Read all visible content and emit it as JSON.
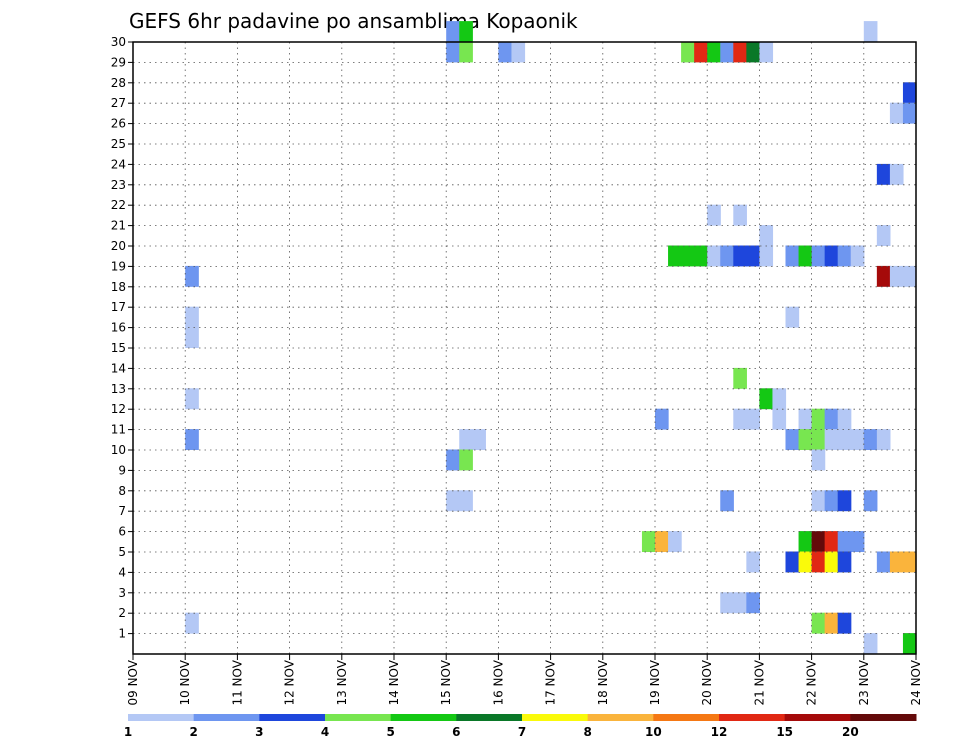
{
  "chart_data": {
    "type": "heatmap",
    "title": "GEFS 6hr padavine po ansamblima Kopaonik",
    "xlabel": "",
    "ylabel": "",
    "x_tick_labels": [
      "09 NOV",
      "10 NOV",
      "11 NOV",
      "12 NOV",
      "13 NOV",
      "14 NOV",
      "15 NOV",
      "16 NOV",
      "17 NOV",
      "18 NOV",
      "19 NOV",
      "20 NOV",
      "21 NOV",
      "22 NOV",
      "23 NOV",
      "24 NOV"
    ],
    "xlim": [
      0,
      60
    ],
    "ylim": [
      0,
      30
    ],
    "y_ticks": [
      1,
      2,
      3,
      4,
      5,
      6,
      7,
      8,
      9,
      10,
      11,
      12,
      13,
      14,
      15,
      16,
      17,
      18,
      19,
      20,
      21,
      22,
      23,
      24,
      25,
      26,
      27,
      28,
      29,
      30
    ],
    "grid": true,
    "legend": {
      "placement": "bottom",
      "labels": [
        "1",
        "2",
        "3",
        "4",
        "5",
        "6",
        "7",
        "8",
        "10",
        "12",
        "15",
        "20"
      ],
      "colors": [
        "#b4c8f5",
        "#6e96f0",
        "#1e46dc",
        "#78e650",
        "#14c814",
        "#0a7828",
        "#fafa0a",
        "#fab43c",
        "#f57814",
        "#e12814",
        "#a50a0a",
        "#640a0a"
      ]
    },
    "cells_note": "each cell: x = 6-hour step index from 09 NOV 00UTC, member = ensemble member (row), c = color class index",
    "cells": [
      {
        "x": 4,
        "member": 18,
        "c": 1
      },
      {
        "x": 4,
        "member": 16,
        "c": 0
      },
      {
        "x": 4,
        "member": 15,
        "c": 0
      },
      {
        "x": 4,
        "member": 12,
        "c": 0
      },
      {
        "x": 4,
        "member": 10,
        "c": 1
      },
      {
        "x": 4,
        "member": 1,
        "c": 0
      },
      {
        "x": 24,
        "member": 30,
        "c": 1
      },
      {
        "x": 25,
        "member": 30,
        "c": 4
      },
      {
        "x": 24,
        "member": 29,
        "c": 1
      },
      {
        "x": 25,
        "member": 29,
        "c": 3
      },
      {
        "x": 28,
        "member": 29,
        "c": 1
      },
      {
        "x": 29,
        "member": 29,
        "c": 0
      },
      {
        "x": 42,
        "member": 29,
        "c": 3
      },
      {
        "x": 43,
        "member": 29,
        "c": 9
      },
      {
        "x": 44,
        "member": 29,
        "c": 4
      },
      {
        "x": 45,
        "member": 29,
        "c": 1
      },
      {
        "x": 46,
        "member": 29,
        "c": 9
      },
      {
        "x": 47,
        "member": 29,
        "c": 5
      },
      {
        "x": 48,
        "member": 29,
        "c": 0
      },
      {
        "x": 56,
        "member": 30,
        "c": 0
      },
      {
        "x": 59,
        "member": 27,
        "c": 2
      },
      {
        "x": 58,
        "member": 26,
        "c": 0
      },
      {
        "x": 59,
        "member": 26,
        "c": 1
      },
      {
        "x": 57,
        "member": 23,
        "c": 2
      },
      {
        "x": 58,
        "member": 23,
        "c": 0
      },
      {
        "x": 44,
        "member": 21,
        "c": 0
      },
      {
        "x": 46,
        "member": 21,
        "c": 0
      },
      {
        "x": 48,
        "member": 20,
        "c": 0
      },
      {
        "x": 57,
        "member": 20,
        "c": 0
      },
      {
        "x": 41,
        "member": 19,
        "c": 4
      },
      {
        "x": 42,
        "member": 19,
        "c": 4
      },
      {
        "x": 43,
        "member": 19,
        "c": 4
      },
      {
        "x": 44,
        "member": 19,
        "c": 0
      },
      {
        "x": 45,
        "member": 19,
        "c": 1
      },
      {
        "x": 46,
        "member": 19,
        "c": 2
      },
      {
        "x": 47,
        "member": 19,
        "c": 2
      },
      {
        "x": 48,
        "member": 19,
        "c": 0
      },
      {
        "x": 50,
        "member": 19,
        "c": 1
      },
      {
        "x": 51,
        "member": 19,
        "c": 4
      },
      {
        "x": 52,
        "member": 19,
        "c": 1
      },
      {
        "x": 53,
        "member": 19,
        "c": 2
      },
      {
        "x": 54,
        "member": 19,
        "c": 1
      },
      {
        "x": 55,
        "member": 19,
        "c": 0
      },
      {
        "x": 57,
        "member": 18,
        "c": 10
      },
      {
        "x": 58,
        "member": 18,
        "c": 0
      },
      {
        "x": 59,
        "member": 18,
        "c": 0
      },
      {
        "x": 50,
        "member": 16,
        "c": 0
      },
      {
        "x": 46,
        "member": 13,
        "c": 3
      },
      {
        "x": 48,
        "member": 12,
        "c": 4
      },
      {
        "x": 49,
        "member": 12,
        "c": 0
      },
      {
        "x": 40,
        "member": 11,
        "c": 1
      },
      {
        "x": 46,
        "member": 11,
        "c": 0
      },
      {
        "x": 47,
        "member": 11,
        "c": 0
      },
      {
        "x": 49,
        "member": 11,
        "c": 0
      },
      {
        "x": 51,
        "member": 11,
        "c": 0
      },
      {
        "x": 52,
        "member": 11,
        "c": 3
      },
      {
        "x": 53,
        "member": 11,
        "c": 1
      },
      {
        "x": 54,
        "member": 11,
        "c": 0
      },
      {
        "x": 25,
        "member": 10,
        "c": 0
      },
      {
        "x": 26,
        "member": 10,
        "c": 0
      },
      {
        "x": 50,
        "member": 10,
        "c": 1
      },
      {
        "x": 51,
        "member": 10,
        "c": 3
      },
      {
        "x": 52,
        "member": 10,
        "c": 3
      },
      {
        "x": 53,
        "member": 10,
        "c": 0
      },
      {
        "x": 54,
        "member": 10,
        "c": 0
      },
      {
        "x": 55,
        "member": 10,
        "c": 0
      },
      {
        "x": 56,
        "member": 10,
        "c": 1
      },
      {
        "x": 57,
        "member": 10,
        "c": 0
      },
      {
        "x": 24,
        "member": 9,
        "c": 1
      },
      {
        "x": 25,
        "member": 9,
        "c": 3
      },
      {
        "x": 52,
        "member": 9,
        "c": 0
      },
      {
        "x": 24,
        "member": 7,
        "c": 0
      },
      {
        "x": 25,
        "member": 7,
        "c": 0
      },
      {
        "x": 45,
        "member": 7,
        "c": 1
      },
      {
        "x": 52,
        "member": 7,
        "c": 0
      },
      {
        "x": 53,
        "member": 7,
        "c": 1
      },
      {
        "x": 54,
        "member": 7,
        "c": 2
      },
      {
        "x": 56,
        "member": 7,
        "c": 1
      },
      {
        "x": 39,
        "member": 5,
        "c": 3
      },
      {
        "x": 40,
        "member": 5,
        "c": 7
      },
      {
        "x": 41,
        "member": 5,
        "c": 0
      },
      {
        "x": 51,
        "member": 5,
        "c": 4
      },
      {
        "x": 52,
        "member": 5,
        "c": 11
      },
      {
        "x": 53,
        "member": 5,
        "c": 9
      },
      {
        "x": 54,
        "member": 5,
        "c": 1
      },
      {
        "x": 55,
        "member": 5,
        "c": 1
      },
      {
        "x": 47,
        "member": 4,
        "c": 0
      },
      {
        "x": 50,
        "member": 4,
        "c": 2
      },
      {
        "x": 51,
        "member": 4,
        "c": 6
      },
      {
        "x": 52,
        "member": 4,
        "c": 9
      },
      {
        "x": 53,
        "member": 4,
        "c": 6
      },
      {
        "x": 54,
        "member": 4,
        "c": 2
      },
      {
        "x": 57,
        "member": 4,
        "c": 1
      },
      {
        "x": 58,
        "member": 4,
        "c": 7
      },
      {
        "x": 59,
        "member": 4,
        "c": 7
      },
      {
        "x": 45,
        "member": 2,
        "c": 0
      },
      {
        "x": 46,
        "member": 2,
        "c": 0
      },
      {
        "x": 47,
        "member": 2,
        "c": 1
      },
      {
        "x": 52,
        "member": 1,
        "c": 3
      },
      {
        "x": 53,
        "member": 1,
        "c": 7
      },
      {
        "x": 54,
        "member": 1,
        "c": 2
      },
      {
        "x": 56,
        "member": 0,
        "c": 0
      },
      {
        "x": 59,
        "member": 0,
        "c": 4
      }
    ]
  }
}
